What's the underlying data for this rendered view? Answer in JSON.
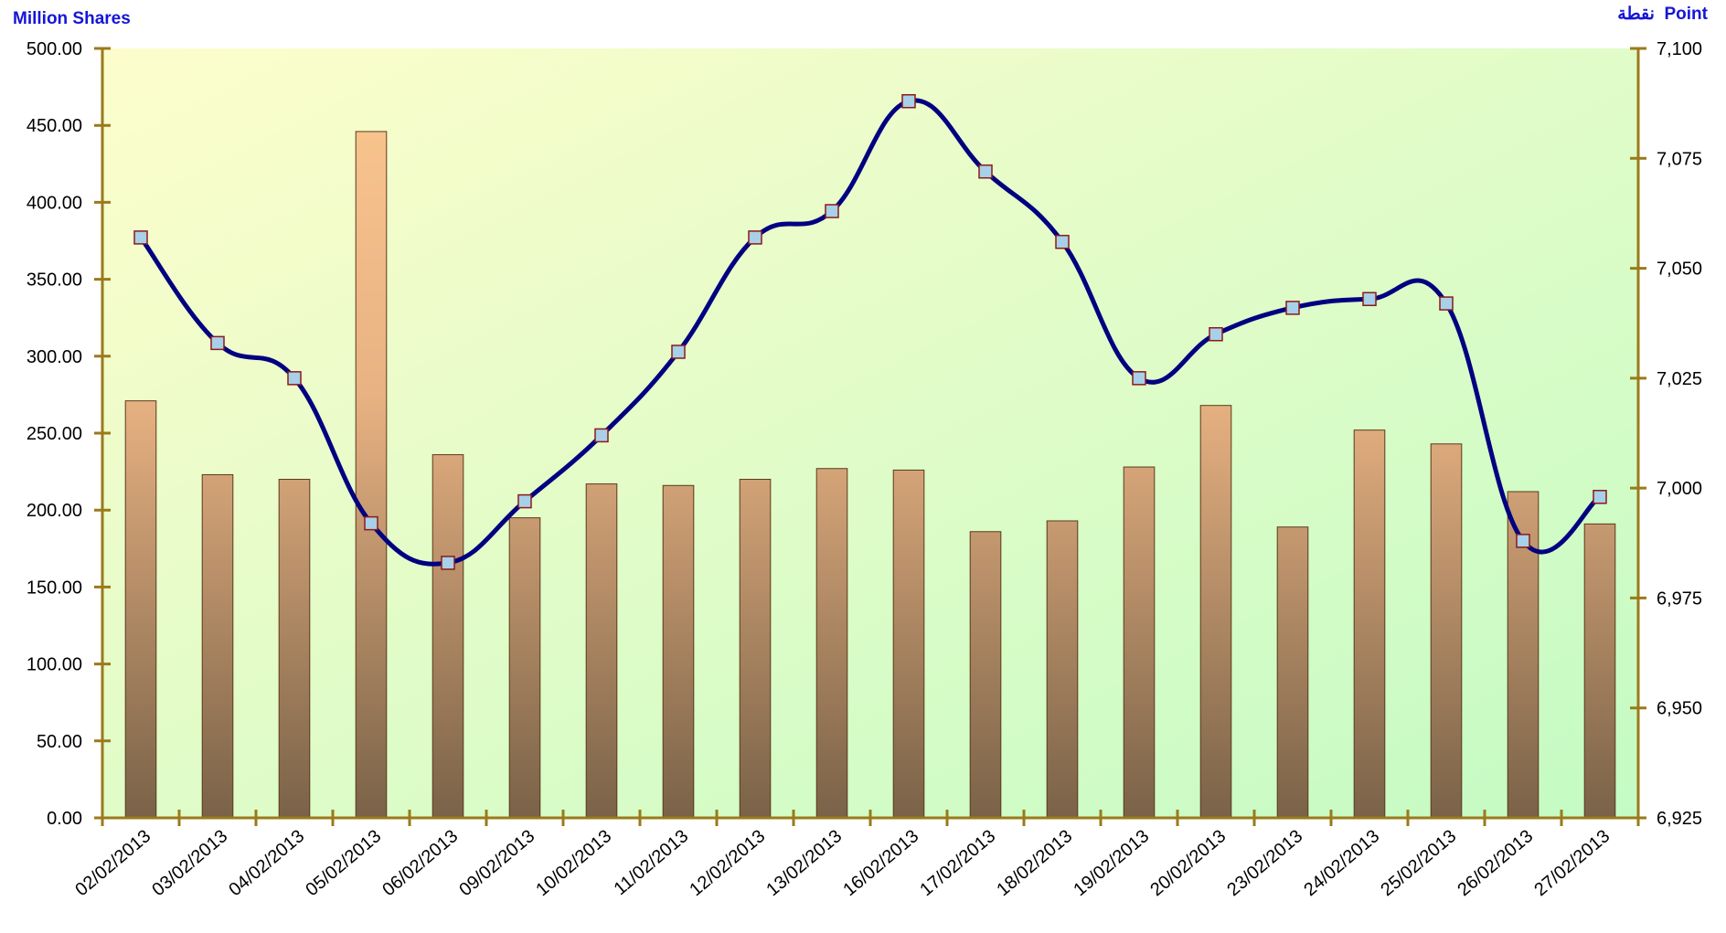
{
  "chart_data": {
    "type": "bar",
    "combo": "bar+line",
    "title": "",
    "categories": [
      "02/02/2013",
      "03/02/2013",
      "04/02/2013",
      "05/02/2013",
      "06/02/2013",
      "09/02/2013",
      "10/02/2013",
      "11/02/2013",
      "12/02/2013",
      "13/02/2013",
      "16/02/2013",
      "17/02/2013",
      "18/02/2013",
      "19/02/2013",
      "20/02/2013",
      "23/02/2013",
      "24/02/2013",
      "25/02/2013",
      "26/02/2013",
      "27/02/2013"
    ],
    "y_left": {
      "label": "Million Shares",
      "ylim": [
        0,
        500
      ],
      "ticks": [
        "0.00",
        "50.00",
        "100.00",
        "150.00",
        "200.00",
        "250.00",
        "300.00",
        "350.00",
        "400.00",
        "450.00",
        "500.00"
      ]
    },
    "y_right": {
      "label": "Point",
      "label_arabic": "نقطة",
      "ylim": [
        6925,
        7100
      ],
      "ticks": [
        "6,925",
        "6,950",
        "6,975",
        "7,000",
        "7,025",
        "7,050",
        "7,075",
        "7,100"
      ]
    },
    "series": [
      {
        "type": "bar",
        "axis": "left",
        "values": [
          271,
          223,
          220,
          446,
          236,
          195,
          217,
          216,
          220,
          227,
          226,
          186,
          193,
          228,
          268,
          189,
          252,
          243,
          212,
          191
        ]
      },
      {
        "type": "line",
        "axis": "right",
        "smooth": true,
        "values": [
          7057,
          7033,
          7025,
          6992,
          6983,
          6997,
          7012,
          7031,
          7057,
          7063,
          7088,
          7072,
          7056,
          7025,
          7035,
          7041,
          7043,
          7042,
          6988,
          6998
        ]
      }
    ],
    "grid": false,
    "legend": "none",
    "colors": {
      "bar_light": "#fcc890",
      "bar_dark": "#7a6248",
      "line": "#000080",
      "marker_fill": "#a8d0e8",
      "marker_stroke": "#8b1a1a",
      "axis": "#9a7a1a",
      "plot_bg_top_left": "#fdfdcc",
      "plot_bg_bottom_right": "#c4fbc4",
      "axis_title": "#1515d8"
    }
  }
}
